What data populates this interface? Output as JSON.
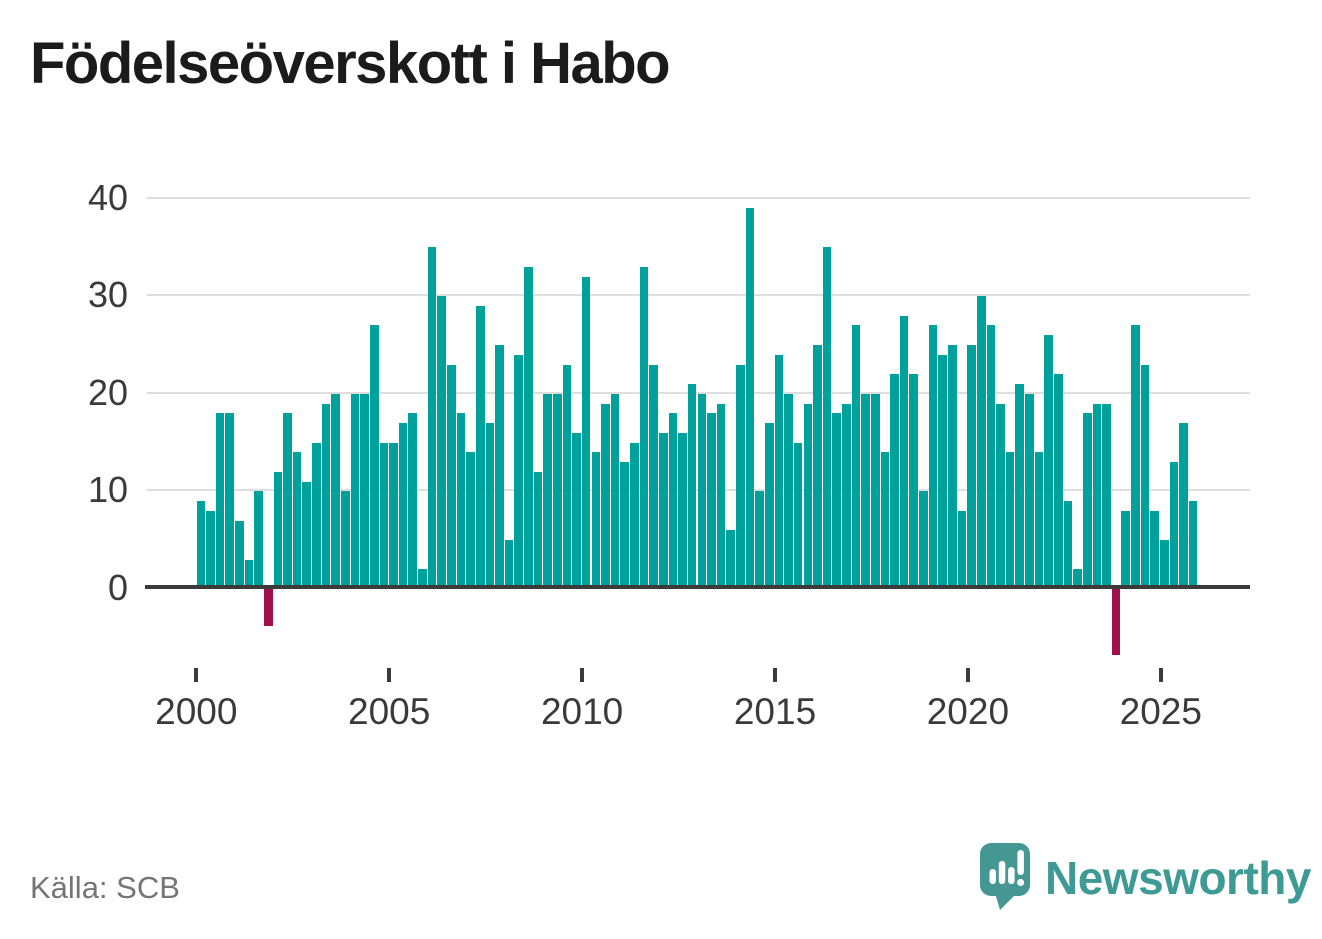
{
  "title": "Födelseöverskott i Habo",
  "source": "Källa: SCB",
  "brand": {
    "name": "Newsworthy",
    "logo_icon": "speech-bubble-bar-chart-icon",
    "text_color": "#3e9a95",
    "bubble_color": "#449792"
  },
  "chart_data": {
    "type": "bar",
    "title": "Födelseöverskott i Habo",
    "x_start": "2000-Q1",
    "x_end": "2025-Q4",
    "frequency": "quarterly",
    "values": [
      9,
      8,
      18,
      18,
      7,
      3,
      10,
      -4,
      12,
      18,
      14,
      11,
      15,
      19,
      20,
      10,
      20,
      20,
      27,
      15,
      15,
      17,
      18,
      2,
      35,
      30,
      23,
      18,
      14,
      29,
      17,
      25,
      5,
      24,
      33,
      12,
      20,
      20,
      23,
      16,
      32,
      14,
      19,
      20,
      13,
      15,
      33,
      23,
      16,
      18,
      16,
      21,
      20,
      18,
      19,
      6,
      23,
      39,
      10,
      17,
      24,
      20,
      15,
      19,
      25,
      35,
      18,
      19,
      27,
      20,
      20,
      14,
      22,
      28,
      22,
      10,
      27,
      24,
      25,
      8,
      25,
      30,
      27,
      19,
      14,
      21,
      20,
      14,
      26,
      22,
      9,
      2,
      18,
      19,
      19,
      -7,
      8,
      27,
      23,
      8,
      5,
      13,
      17,
      9
    ],
    "xticks": [
      2000,
      2005,
      2010,
      2015,
      2020,
      2025
    ],
    "yticks": [
      0,
      10,
      20,
      30,
      40
    ],
    "ylim": [
      -8,
      40
    ],
    "grid": true,
    "legend": false,
    "xlabel": "",
    "ylabel": "",
    "bar_color_positive": "#00a09b",
    "bar_color_negative": "#a0104a",
    "grid_color": "#dedede",
    "axis_color": "#3b3b3b",
    "tick_label_color": "#3a3a3a"
  }
}
